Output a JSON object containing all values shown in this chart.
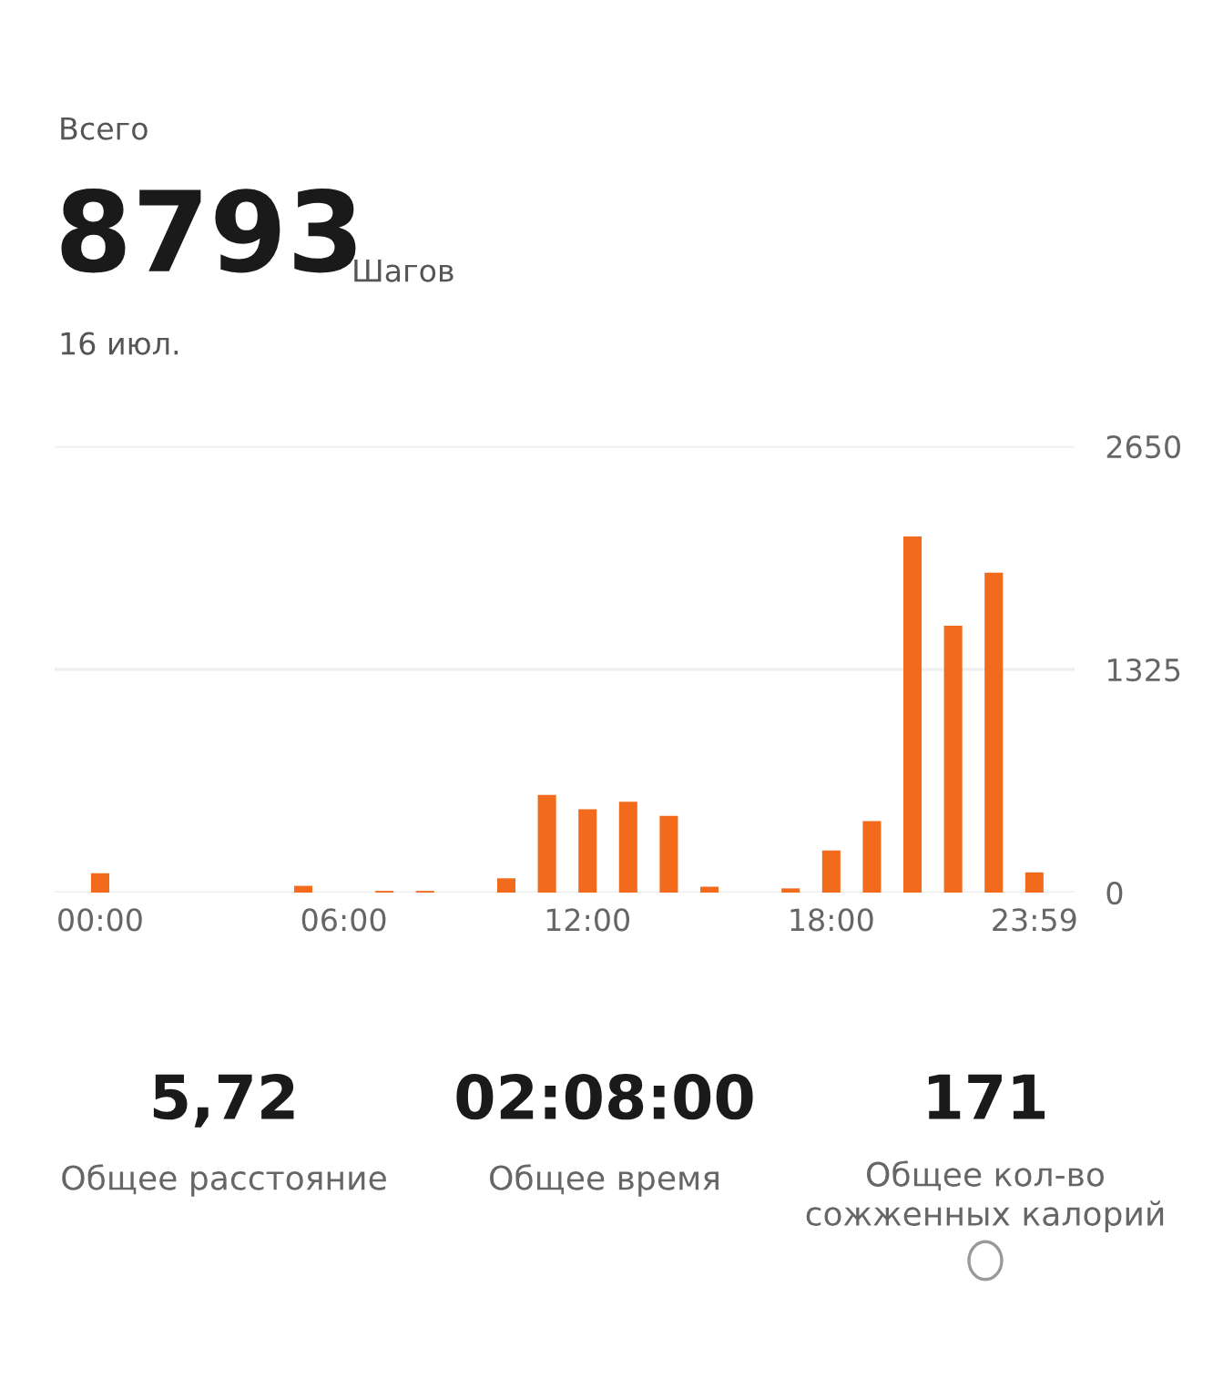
{
  "chart_data": {
    "type": "bar",
    "title": "Всего",
    "categories": [
      "00:00",
      null,
      null,
      null,
      null,
      null,
      "06:00",
      null,
      null,
      null,
      null,
      null,
      "12:00",
      null,
      null,
      null,
      null,
      null,
      "18:00",
      null,
      null,
      null,
      null,
      "23:59"
    ],
    "values": [
      115,
      0,
      0,
      0,
      0,
      40,
      0,
      10,
      10,
      0,
      85,
      580,
      495,
      540,
      455,
      35,
      0,
      25,
      250,
      425,
      2115,
      1585,
      1900,
      120
    ],
    "color": "#f26b1d",
    "ylim": [
      0,
      2650
    ],
    "yticks": [
      0,
      1325,
      2650
    ],
    "grid": "y",
    "legend": false,
    "annotations": [
      "8793",
      "Шагов",
      "16 июл.",
      "5,72",
      "Общее расстояние",
      "02:08:00",
      "Общее время",
      "171",
      "Общее кол-во\nсожженных калорий"
    ]
  }
}
